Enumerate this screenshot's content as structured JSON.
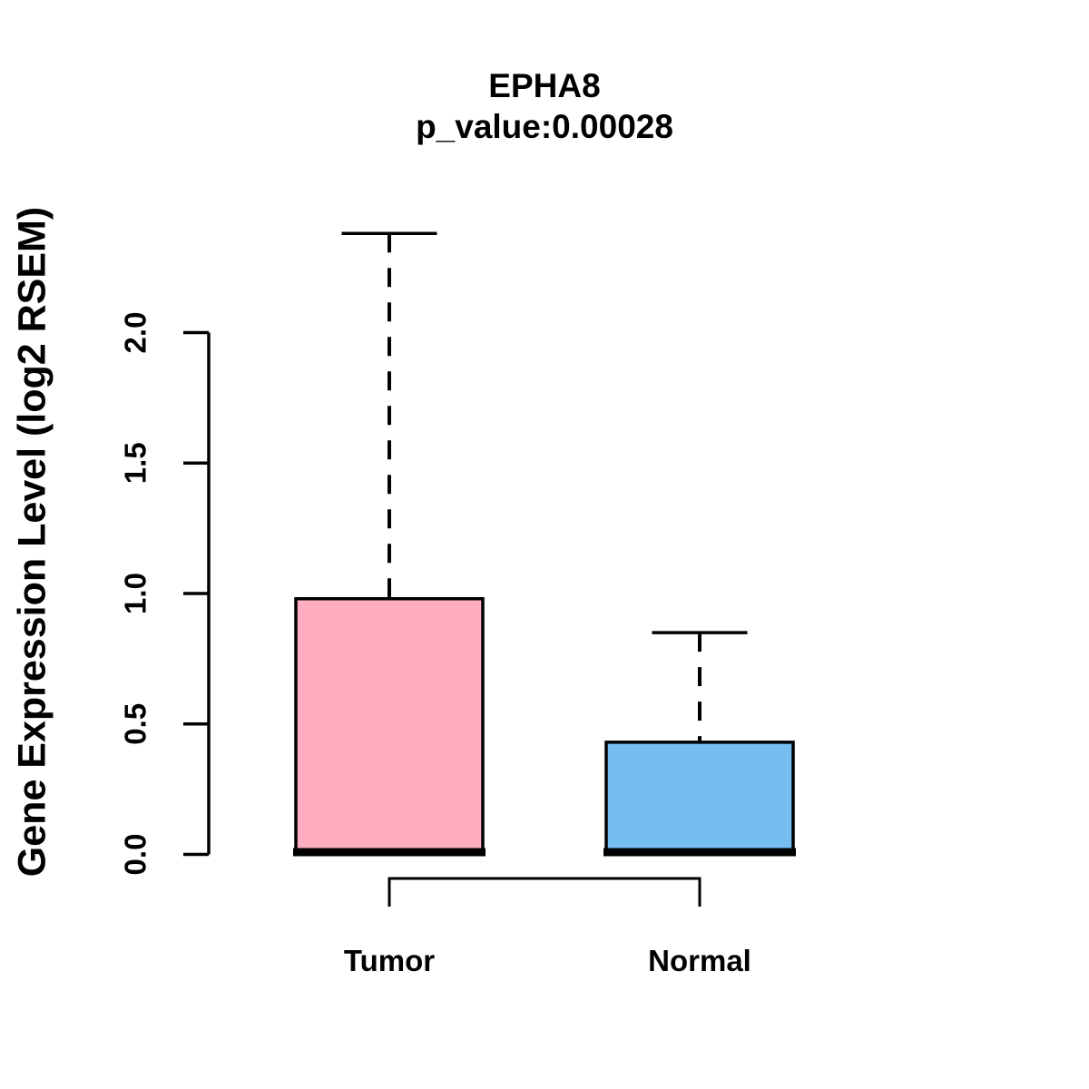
{
  "title": {
    "text": "EPHA8",
    "subtitle": "p_value:0.00028"
  },
  "y_axis": {
    "label": "Gene Expression Level (log2 RSEM)",
    "tick_labels": [
      "0.0",
      "0.5",
      "1.0",
      "1.5",
      "2.0"
    ]
  },
  "x_axis": {
    "categories": [
      "Tumor",
      "Normal"
    ]
  },
  "chart_data": {
    "type": "boxplot",
    "title": "EPHA8",
    "subtitle": "p_value:0.00028",
    "p_value": 0.00028,
    "gene": "EPHA8",
    "ylabel": "Gene Expression Level (log2 RSEM)",
    "categories": [
      "Tumor",
      "Normal"
    ],
    "series": [
      {
        "name": "Tumor",
        "fill_color": "#FFAEC2",
        "whisker_low": 0.0,
        "q1": 0.0,
        "median": 0.0,
        "q3": 0.98,
        "whisker_high": 2.38
      },
      {
        "name": "Normal",
        "fill_color": "#74BEF2",
        "whisker_low": 0.0,
        "q1": 0.0,
        "median": 0.0,
        "q3": 0.43,
        "whisker_high": 0.85
      }
    ],
    "yticks": [
      0.0,
      0.5,
      1.0,
      1.5,
      2.0
    ],
    "ylim": [
      0.0,
      2.4
    ],
    "grid": false,
    "legend": false,
    "box_border_color": "#000000",
    "whisker_style": "dashed",
    "background_color": "#FFFFFF"
  }
}
